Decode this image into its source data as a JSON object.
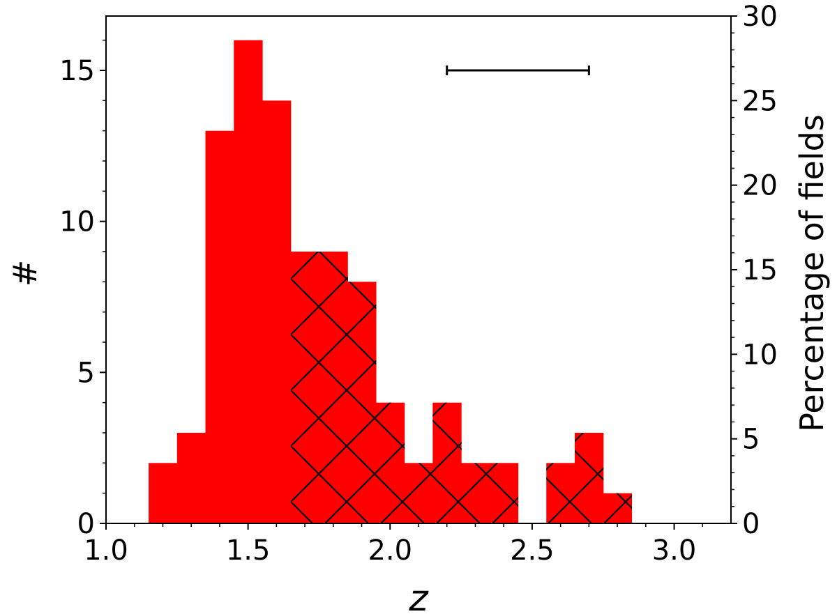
{
  "chart_data": {
    "type": "bar",
    "subtype": "histogram",
    "xlabel": "z",
    "ylabel": "#",
    "y2label": "Percentage of fields",
    "xlim": [
      1.0,
      3.2
    ],
    "ylim": [
      0,
      16.8
    ],
    "y2lim": [
      0,
      30
    ],
    "xticks": [
      1.0,
      1.5,
      2.0,
      2.5,
      3.0
    ],
    "xtick_labels": [
      "1.0",
      "1.5",
      "2.0",
      "2.5",
      "3.0"
    ],
    "yticks": [
      0,
      5,
      10,
      15
    ],
    "ytick_labels": [
      "0",
      "5",
      "10",
      "15"
    ],
    "y2ticks": [
      0,
      5,
      10,
      15,
      20,
      25,
      30
    ],
    "y2tick_labels": [
      "0",
      "5",
      "10",
      "15",
      "20",
      "25",
      "30"
    ],
    "bar_color": "#ff0000",
    "hatch_color": "#000000",
    "hatch_from_x": 1.65,
    "grid": false,
    "bins": [
      {
        "x0": 1.15,
        "x1": 1.25,
        "count": 2
      },
      {
        "x0": 1.25,
        "x1": 1.35,
        "count": 3
      },
      {
        "x0": 1.35,
        "x1": 1.45,
        "count": 13
      },
      {
        "x0": 1.45,
        "x1": 1.55,
        "count": 16
      },
      {
        "x0": 1.55,
        "x1": 1.65,
        "count": 14
      },
      {
        "x0": 1.65,
        "x1": 1.75,
        "count": 9
      },
      {
        "x0": 1.75,
        "x1": 1.85,
        "count": 9
      },
      {
        "x0": 1.85,
        "x1": 1.95,
        "count": 8
      },
      {
        "x0": 1.95,
        "x1": 2.05,
        "count": 4
      },
      {
        "x0": 2.05,
        "x1": 2.15,
        "count": 2
      },
      {
        "x0": 2.15,
        "x1": 2.25,
        "count": 4
      },
      {
        "x0": 2.25,
        "x1": 2.35,
        "count": 2
      },
      {
        "x0": 2.35,
        "x1": 2.45,
        "count": 2
      },
      {
        "x0": 2.45,
        "x1": 2.55,
        "count": 0
      },
      {
        "x0": 2.55,
        "x1": 2.65,
        "count": 2
      },
      {
        "x0": 2.65,
        "x1": 2.75,
        "count": 3
      },
      {
        "x0": 2.75,
        "x1": 2.85,
        "count": 1
      }
    ],
    "annotation_errorbar": {
      "x_start": 2.2,
      "x_end": 2.7,
      "y": 15
    }
  }
}
